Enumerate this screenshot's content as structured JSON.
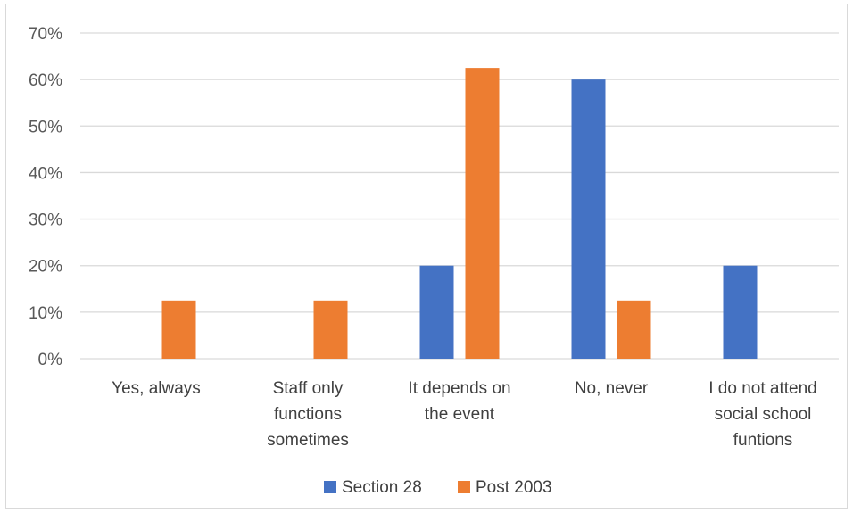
{
  "chart_data": {
    "type": "bar",
    "title": "",
    "xlabel": "",
    "ylabel": "",
    "categories": [
      [
        "Yes, always"
      ],
      [
        "Staff only",
        "functions",
        "sometimes"
      ],
      [
        "It depends on",
        "the event"
      ],
      [
        "No, never"
      ],
      [
        "I do not attend",
        "social school",
        "funtions"
      ]
    ],
    "series": [
      {
        "name": "Section 28",
        "color": "#4472c4",
        "values": [
          0,
          0,
          20,
          60,
          20
        ]
      },
      {
        "name": "Post 2003",
        "color": "#ed7d31",
        "values": [
          12.5,
          12.5,
          62.5,
          12.5,
          0
        ]
      }
    ],
    "ylim": [
      0,
      70
    ],
    "yticks": [
      0,
      10,
      20,
      30,
      40,
      50,
      60,
      70
    ],
    "ytick_labels": [
      "0%",
      "10%",
      "20%",
      "30%",
      "40%",
      "50%",
      "60%",
      "70%"
    ],
    "grid": true,
    "legend_position": "bottom",
    "gridline_color": "#d9d9d9"
  }
}
